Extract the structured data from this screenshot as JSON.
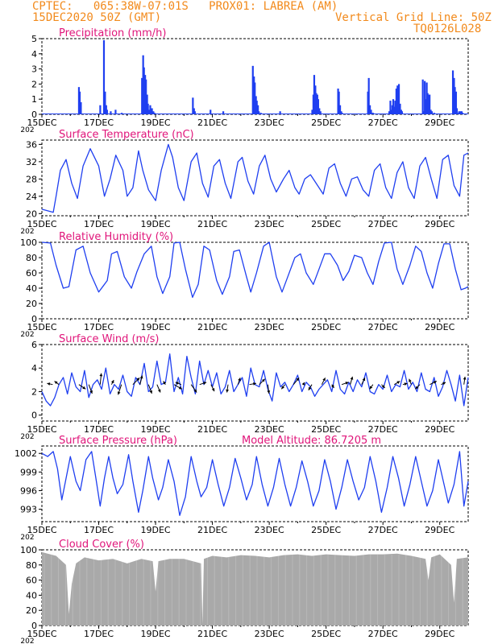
{
  "header": {
    "line1": "CPTEC:   065:38W-07:01S   PROX01: LABREA (AM)",
    "line2": "15DEC2020 50Z (GMT)",
    "grid_note": "Vertical Grid Line: 50Z",
    "code": "TQ0126L028"
  },
  "colors": {
    "header": "#f28a1c",
    "title": "#e0157a",
    "series": "#1f3ff0",
    "cloud": "#a9a9a9",
    "arrow": "#000000"
  },
  "x_axis": {
    "ticks": [
      "15DEC",
      "17DEC",
      "19DEC",
      "21DEC",
      "23DEC",
      "25DEC",
      "27DEC",
      "29DEC"
    ],
    "year_stub": "202"
  },
  "chart_data": [
    {
      "id": "precip",
      "type": "bar",
      "title": "Precipitation (mm/h)",
      "ylim": [
        0,
        5
      ],
      "yticks": [
        "0",
        "1",
        "2",
        "3",
        "4",
        "5"
      ],
      "x": [
        1.3,
        1.33,
        1.37,
        2.05,
        2.18,
        2.22,
        2.26,
        2.29,
        2.42,
        2.59,
        2.81,
        3.52,
        3.56,
        3.59,
        3.63,
        3.66,
        3.7,
        3.73,
        3.77,
        3.81,
        3.87,
        3.92,
        3.96,
        5.31,
        5.35,
        5.38,
        5.93,
        6.38,
        7.42,
        7.46,
        7.49,
        7.53,
        7.56,
        7.6,
        7.63,
        7.7,
        8.38,
        9.51,
        9.55,
        9.58,
        9.62,
        9.65,
        9.69,
        9.72,
        9.76,
        9.8,
        10.42,
        10.45,
        10.49,
        10.53,
        10.56,
        11.47,
        11.5,
        11.54,
        11.58,
        11.61,
        11.65,
        12.22,
        12.26,
        12.29,
        12.33,
        12.36,
        12.4,
        12.43,
        12.47,
        12.51,
        12.56,
        12.6,
        12.64,
        12.67,
        13.4,
        13.43,
        13.47,
        13.51,
        13.54,
        13.57,
        13.61,
        13.64,
        13.68,
        13.72,
        13.8,
        14.46,
        14.5,
        14.53,
        14.57,
        14.6,
        14.64,
        14.68,
        14.73,
        14.77,
        14.8
      ],
      "values": [
        1.8,
        1.5,
        0.8,
        0.6,
        4.9,
        1.5,
        0.6,
        0.3,
        0.2,
        0.3,
        0.1,
        2.4,
        3.9,
        3.1,
        2.6,
        2.3,
        1.3,
        0.7,
        0.3,
        0.6,
        0.4,
        0.2,
        0.1,
        1.1,
        0.4,
        0.2,
        0.3,
        0.2,
        3.2,
        2.5,
        2.1,
        1.2,
        0.9,
        0.6,
        0.2,
        0.1,
        0.2,
        0.3,
        1.3,
        2.6,
        1.9,
        1.4,
        1.3,
        1.0,
        0.4,
        0.2,
        1.7,
        1.5,
        0.6,
        0.2,
        0.1,
        1.5,
        2.4,
        0.6,
        0.3,
        0.1,
        0.1,
        0.2,
        0.9,
        0.3,
        0.6,
        1.0,
        0.5,
        0.9,
        1.7,
        1.9,
        2.0,
        0.7,
        0.3,
        0.2,
        2.3,
        0.2,
        2.2,
        1.0,
        2.1,
        1.4,
        1.3,
        1.3,
        0.3,
        0.2,
        0.1,
        2.9,
        2.4,
        1.8,
        1.5,
        0.4,
        0.1,
        0.2,
        0.2,
        0.2,
        0.1
      ]
    },
    {
      "id": "temp",
      "type": "line",
      "title": "Surface Temperature (nC)",
      "ylim": [
        19.5,
        37
      ],
      "yticks": [
        "20",
        "24",
        "28",
        "32",
        "36"
      ],
      "x": [
        0,
        0.4,
        0.5,
        0.65,
        0.85,
        1.05,
        1.25,
        1.45,
        1.7,
        2.0,
        2.2,
        2.4,
        2.6,
        2.85,
        3.0,
        3.2,
        3.4,
        3.55,
        3.75,
        4.0,
        4.2,
        4.45,
        4.6,
        4.8,
        5.0,
        5.25,
        5.45,
        5.65,
        5.85,
        6.05,
        6.25,
        6.45,
        6.65,
        6.9,
        7.05,
        7.25,
        7.45,
        7.65,
        7.85,
        8.05,
        8.25,
        8.5,
        8.7,
        8.9,
        9.05,
        9.25,
        9.45,
        9.7,
        9.9,
        10.1,
        10.3,
        10.5,
        10.7,
        10.9,
        11.1,
        11.3,
        11.5,
        11.7,
        11.9,
        12.1,
        12.3,
        12.5,
        12.7,
        12.9,
        13.1,
        13.3,
        13.5,
        13.7,
        13.9,
        14.1,
        14.3,
        14.5,
        14.7,
        14.85,
        15.0
      ],
      "y": [
        21,
        20.3,
        24,
        30,
        32.5,
        27,
        23.5,
        31,
        35,
        31,
        24,
        28,
        33.5,
        30,
        24,
        26,
        34.5,
        30,
        25.5,
        23,
        30,
        36,
        33,
        26,
        23,
        32,
        34,
        27,
        23.8,
        31,
        32.5,
        27,
        23.5,
        32,
        33,
        27.5,
        24.5,
        31,
        33.5,
        28,
        25,
        28,
        30,
        26,
        24.5,
        28,
        29,
        26.5,
        24.5,
        30.5,
        31.5,
        27,
        24,
        28,
        28.5,
        25.5,
        24,
        30,
        31.5,
        26,
        23.5,
        29.5,
        32,
        26,
        23.5,
        31,
        33,
        28,
        23.5,
        32.5,
        33.5,
        26.5,
        24,
        33.5,
        34
      ]
    },
    {
      "id": "humidity",
      "type": "line",
      "title": "Relative Humidity (%)",
      "ylim": [
        0,
        100
      ],
      "yticks": [
        "0",
        "20",
        "40",
        "60",
        "80",
        "100"
      ],
      "x": [
        0,
        0.3,
        0.5,
        0.75,
        0.95,
        1.2,
        1.45,
        1.7,
        2.0,
        2.3,
        2.45,
        2.65,
        2.9,
        3.15,
        3.35,
        3.6,
        3.85,
        4.05,
        4.25,
        4.5,
        4.65,
        4.85,
        5.05,
        5.3,
        5.5,
        5.7,
        5.9,
        6.15,
        6.35,
        6.6,
        6.75,
        6.95,
        7.2,
        7.35,
        7.55,
        7.8,
        8.0,
        8.25,
        8.45,
        8.65,
        8.9,
        9.1,
        9.3,
        9.55,
        9.75,
        9.95,
        10.15,
        10.4,
        10.6,
        10.8,
        11.0,
        11.25,
        11.45,
        11.65,
        11.85,
        12.05,
        12.3,
        12.5,
        12.7,
        12.95,
        13.15,
        13.35,
        13.55,
        13.75,
        13.95,
        14.15,
        14.35,
        14.55,
        14.75,
        14.9,
        15.0
      ],
      "y": [
        100,
        99,
        70,
        40,
        42,
        90,
        95,
        60,
        35,
        50,
        85,
        88,
        55,
        40,
        62,
        85,
        95,
        55,
        33,
        55,
        99,
        100,
        65,
        28,
        45,
        95,
        90,
        50,
        32,
        55,
        88,
        90,
        55,
        35,
        60,
        95,
        100,
        55,
        35,
        55,
        80,
        85,
        60,
        45,
        65,
        85,
        85,
        70,
        50,
        62,
        83,
        80,
        60,
        45,
        75,
        99,
        100,
        65,
        45,
        70,
        95,
        88,
        60,
        40,
        72,
        98,
        98,
        65,
        38,
        40,
        42
      ]
    },
    {
      "id": "wind",
      "type": "line",
      "title": "Surface Wind (m/s)",
      "ylim": [
        -0.5,
        6
      ],
      "yticks": [
        "0",
        "2",
        "4",
        "6"
      ],
      "x": [
        0,
        0.15,
        0.3,
        0.45,
        0.6,
        0.75,
        0.9,
        1.05,
        1.2,
        1.35,
        1.5,
        1.65,
        1.8,
        1.95,
        2.1,
        2.25,
        2.4,
        2.55,
        2.7,
        2.85,
        3.0,
        3.15,
        3.3,
        3.45,
        3.6,
        3.75,
        3.9,
        4.05,
        4.2,
        4.35,
        4.5,
        4.65,
        4.8,
        4.95,
        5.1,
        5.25,
        5.4,
        5.55,
        5.7,
        5.85,
        6.0,
        6.15,
        6.3,
        6.45,
        6.6,
        6.75,
        6.9,
        7.05,
        7.2,
        7.35,
        7.5,
        7.65,
        7.8,
        7.95,
        8.1,
        8.25,
        8.4,
        8.55,
        8.7,
        8.85,
        9.0,
        9.15,
        9.3,
        9.45,
        9.6,
        9.75,
        9.9,
        10.05,
        10.2,
        10.35,
        10.5,
        10.65,
        10.8,
        10.95,
        11.1,
        11.25,
        11.4,
        11.55,
        11.7,
        11.85,
        12.0,
        12.15,
        12.3,
        12.45,
        12.6,
        12.75,
        12.9,
        13.05,
        13.2,
        13.35,
        13.5,
        13.65,
        13.8,
        13.95,
        14.1,
        14.25,
        14.4,
        14.55,
        14.7,
        14.85,
        15.0
      ],
      "y": [
        2.0,
        1.2,
        0.8,
        1.5,
        2.6,
        3.2,
        1.8,
        3.6,
        2.4,
        2.0,
        3.8,
        1.5,
        2.6,
        3.0,
        2.2,
        4.0,
        1.8,
        2.6,
        2.2,
        3.4,
        2.0,
        1.6,
        3.2,
        2.6,
        4.4,
        2.0,
        2.4,
        4.6,
        2.6,
        2.8,
        5.2,
        2.0,
        3.2,
        1.8,
        5.0,
        3.2,
        1.8,
        4.6,
        2.6,
        3.8,
        2.4,
        3.6,
        1.8,
        2.4,
        3.8,
        2.0,
        2.6,
        3.2,
        1.6,
        4.0,
        2.6,
        2.4,
        3.8,
        2.2,
        1.2,
        3.6,
        2.4,
        2.8,
        2.0,
        2.6,
        3.4,
        2.0,
        2.8,
        2.4,
        1.6,
        2.2,
        2.6,
        3.0,
        2.0,
        3.8,
        2.2,
        1.8,
        2.8,
        2.0,
        3.0,
        2.4,
        3.6,
        2.0,
        1.8,
        2.6,
        2.2,
        3.4,
        2.0,
        2.6,
        2.4,
        3.8,
        2.2,
        2.8,
        2.0,
        3.6,
        2.2,
        2.0,
        3.2,
        1.6,
        2.4,
        3.8,
        2.6,
        1.2,
        3.4,
        0.8,
        3.2
      ]
    },
    {
      "id": "pressure",
      "type": "line",
      "title": "Surface Pressure (hPa)",
      "annotation": "Model Altitude: 86.7205  m",
      "ylim": [
        991,
        1003.2
      ],
      "yticks": [
        "993",
        "996",
        "999",
        "1002"
      ],
      "x": [
        0,
        0.2,
        0.4,
        0.55,
        0.7,
        0.85,
        1.0,
        1.2,
        1.35,
        1.55,
        1.75,
        1.9,
        2.05,
        2.2,
        2.35,
        2.5,
        2.65,
        2.85,
        3.05,
        3.2,
        3.4,
        3.55,
        3.75,
        3.9,
        4.1,
        4.25,
        4.45,
        4.65,
        4.85,
        5.05,
        5.25,
        5.45,
        5.6,
        5.8,
        6.0,
        6.2,
        6.4,
        6.6,
        6.8,
        7.0,
        7.2,
        7.4,
        7.55,
        7.75,
        7.95,
        8.15,
        8.35,
        8.55,
        8.75,
        8.95,
        9.15,
        9.35,
        9.55,
        9.75,
        9.95,
        10.15,
        10.35,
        10.55,
        10.75,
        10.95,
        11.15,
        11.35,
        11.55,
        11.75,
        11.95,
        12.15,
        12.35,
        12.55,
        12.75,
        12.95,
        13.15,
        13.35,
        13.55,
        13.75,
        13.95,
        14.1,
        14.3,
        14.5,
        14.7,
        14.85,
        15.0
      ],
      "y": [
        1002,
        1001.5,
        1002.3,
        999.5,
        994.5,
        998,
        1001.5,
        997.5,
        996,
        1001,
        1002.3,
        998,
        993.5,
        998,
        1001.5,
        998,
        995.5,
        997,
        1001.8,
        997.5,
        992.5,
        996,
        1001.5,
        998,
        994.5,
        996.5,
        1001,
        997.5,
        992,
        995,
        1001.5,
        997.5,
        995,
        996.5,
        1001,
        997,
        993.5,
        996.5,
        1001.2,
        998,
        994.5,
        997,
        1001.5,
        997,
        993.5,
        996.5,
        1001.2,
        997,
        993.5,
        996.5,
        1000.8,
        997.5,
        993.5,
        996,
        1001,
        997.5,
        993,
        996.5,
        1001,
        997.5,
        994.5,
        996.5,
        1001.5,
        997.5,
        992.5,
        996.5,
        1001.5,
        998,
        993.5,
        997,
        1001.5,
        997.5,
        993.5,
        996,
        1001,
        998,
        994,
        997,
        1002.3,
        993.5,
        997.5
      ]
    },
    {
      "id": "cloud",
      "type": "area",
      "title": "Cloud Cover (%)",
      "ylim": [
        0,
        100
      ],
      "yticks": [
        "0",
        "20",
        "40",
        "60",
        "80",
        "100"
      ],
      "x": [
        0,
        0.5,
        0.85,
        0.95,
        1.05,
        1.2,
        1.5,
        2.0,
        2.5,
        3.0,
        3.5,
        3.9,
        4.0,
        4.1,
        4.5,
        5.0,
        5.6,
        5.65,
        5.7,
        6.0,
        6.5,
        7.0,
        7.5,
        8.0,
        8.5,
        9.0,
        9.5,
        10.0,
        10.5,
        11.0,
        11.5,
        12.0,
        12.5,
        13.0,
        13.5,
        13.6,
        13.7,
        14.0,
        14.4,
        14.5,
        14.6,
        15.0
      ],
      "y": [
        97,
        92,
        80,
        15,
        55,
        82,
        90,
        86,
        88,
        82,
        88,
        85,
        45,
        85,
        88,
        88,
        82,
        2,
        88,
        92,
        90,
        93,
        92,
        90,
        93,
        94,
        92,
        94,
        93,
        92,
        94,
        94,
        95,
        92,
        88,
        60,
        90,
        94,
        80,
        30,
        88,
        90
      ]
    }
  ],
  "wind_vectors": {
    "x": [
      0.38,
      0.6,
      1.3,
      1.65,
      2.05,
      2.45,
      2.8,
      3.2,
      3.45,
      3.75,
      4.05,
      4.35,
      4.65,
      4.9,
      5.25,
      5.55,
      5.95,
      6.55,
      6.9,
      7.3,
      7.65,
      7.95,
      8.55,
      8.85,
      9.2,
      9.5,
      9.85,
      10.2,
      10.55,
      10.85,
      11.25,
      11.65,
      11.95,
      12.4,
      12.7,
      13.0,
      13.3,
      13.65,
      14.05,
      14.85
    ],
    "u": [
      -0.5,
      -0.4,
      0.6,
      0.3,
      0.1,
      0.2,
      -0.3,
      0.6,
      0.2,
      0.3,
      0.3,
      -0.2,
      0.7,
      -0.5,
      0.5,
      0.6,
      0.3,
      -0.1,
      0.2,
      0.6,
      0.5,
      0.1,
      -0.3,
      0.5,
      0.1,
      -0.3,
      0.3,
      0.2,
      0.6,
      0.2,
      0.3,
      -0.3,
      0.3,
      0.5,
      0.4,
      -0.2,
      -0.4,
      0.6,
      0.4,
      0.1
    ],
    "v": [
      0.1,
      0.3,
      -0.4,
      -0.8,
      1.0,
      0.4,
      -0.9,
      0.6,
      0.8,
      -0.8,
      -0.7,
      0.3,
      -0.4,
      0.2,
      -0.7,
      0.2,
      -0.6,
      -0.7,
      0.6,
      0.1,
      0.5,
      -0.8,
      -0.4,
      0.6,
      0.2,
      -0.5,
      0.6,
      -0.3,
      0.2,
      0.7,
      0.6,
      -0.4,
      -0.3,
      0.3,
      0.1,
      0.5,
      -0.4,
      0.3,
      0.2,
      0.7
    ]
  }
}
